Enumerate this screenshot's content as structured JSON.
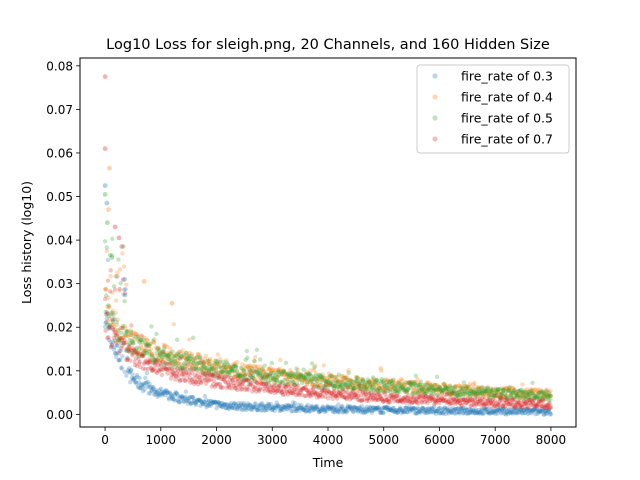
{
  "chart_data": {
    "type": "scatter",
    "title": "Log10 Loss for sleigh.png, 20 Channels, and 160 Hidden Size",
    "xlabel": "Time",
    "ylabel": "Loss history (log10)",
    "xlim": [
      -450,
      8450
    ],
    "ylim": [
      -0.0029,
      0.0818
    ],
    "x_ticks": [
      0,
      1000,
      2000,
      3000,
      4000,
      5000,
      6000,
      7000,
      8000
    ],
    "x_tick_labels": [
      "0",
      "1000",
      "2000",
      "3000",
      "4000",
      "5000",
      "6000",
      "7000",
      "8000"
    ],
    "y_ticks": [
      0.0,
      0.01,
      0.02,
      0.03,
      0.04,
      0.05,
      0.06,
      0.07,
      0.08
    ],
    "y_tick_labels": [
      "0.00",
      "0.01",
      "0.02",
      "0.03",
      "0.04",
      "0.05",
      "0.06",
      "0.07",
      "0.08"
    ],
    "grid": false,
    "legend_position": "top-right",
    "series": [
      {
        "name": "fire_rate of 0.3",
        "color": "#1f77b4",
        "x": [
          0,
          100,
          200,
          300,
          400,
          600,
          800,
          1000,
          1500,
          2000,
          2500,
          3000,
          4000,
          5000,
          6000,
          7000,
          8000
        ],
        "y": [
          0.0235,
          0.0175,
          0.0145,
          0.012,
          0.0095,
          0.0072,
          0.0058,
          0.0048,
          0.0032,
          0.0022,
          0.0018,
          0.0016,
          0.0012,
          0.001,
          0.0008,
          0.0007,
          0.0006
        ]
      },
      {
        "name": "fire_rate of 0.4",
        "color": "#ff7f0e",
        "x": [
          0,
          100,
          200,
          300,
          400,
          600,
          800,
          1000,
          1500,
          2000,
          2500,
          3000,
          4000,
          5000,
          6000,
          7000,
          8000
        ],
        "y": [
          0.027,
          0.022,
          0.02,
          0.0185,
          0.0175,
          0.016,
          0.0148,
          0.014,
          0.0123,
          0.011,
          0.0099,
          0.009,
          0.0077,
          0.0067,
          0.0058,
          0.0051,
          0.0045
        ]
      },
      {
        "name": "fire_rate of 0.5",
        "color": "#2ca02c",
        "x": [
          0,
          100,
          200,
          300,
          400,
          600,
          800,
          1000,
          1500,
          2000,
          2500,
          3000,
          4000,
          5000,
          6000,
          7000,
          8000
        ],
        "y": [
          0.026,
          0.021,
          0.0192,
          0.018,
          0.017,
          0.0155,
          0.0143,
          0.0134,
          0.0117,
          0.0105,
          0.0095,
          0.0087,
          0.0074,
          0.0064,
          0.0055,
          0.0048,
          0.0042
        ]
      },
      {
        "name": "fire_rate of 0.7",
        "color": "#d62728",
        "x": [
          0,
          100,
          200,
          300,
          400,
          600,
          800,
          1000,
          1500,
          2000,
          2500,
          3000,
          4000,
          5000,
          6000,
          7000,
          8000
        ],
        "y": [
          0.022,
          0.018,
          0.0163,
          0.015,
          0.014,
          0.0125,
          0.0113,
          0.0104,
          0.0088,
          0.0077,
          0.0068,
          0.006,
          0.0048,
          0.0038,
          0.0031,
          0.0026,
          0.0022
        ]
      }
    ]
  }
}
